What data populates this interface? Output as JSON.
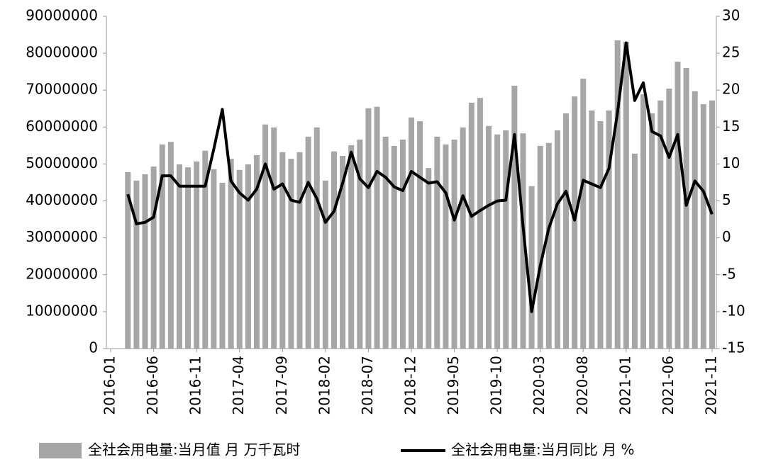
{
  "chart_data": {
    "type": "bar-line",
    "categories": [
      "2016-01",
      null,
      null,
      null,
      null,
      "2016-06",
      null,
      null,
      null,
      null,
      "2016-11",
      null,
      null,
      null,
      null,
      "2017-04",
      null,
      null,
      null,
      null,
      "2017-09",
      null,
      null,
      null,
      null,
      "2018-02",
      null,
      null,
      null,
      null,
      "2018-07",
      null,
      null,
      null,
      null,
      "2018-12",
      null,
      null,
      null,
      null,
      "2019-05",
      null,
      null,
      null,
      null,
      "2019-10",
      null,
      null,
      null,
      null,
      "2020-03",
      null,
      null,
      null,
      null,
      "2020-08",
      null,
      null,
      null,
      null,
      "2021-01",
      null,
      null,
      null,
      null,
      "2021-06",
      null,
      null,
      null,
      null,
      "2021-11"
    ],
    "series": [
      {
        "name": "全社会用电量:当月值 月 万千瓦时",
        "type": "bar",
        "color": "#a6a6a6",
        "values": [
          null,
          null,
          47800000,
          45500000,
          47200000,
          49300000,
          55300000,
          56000000,
          49900000,
          49100000,
          50700000,
          53600000,
          48600000,
          44900000,
          51400000,
          48400000,
          49900000,
          52400000,
          60700000,
          59900000,
          53200000,
          51400000,
          53200000,
          57400000,
          59900000,
          45500000,
          53400000,
          52200000,
          55100000,
          56600000,
          65100000,
          65500000,
          57400000,
          54900000,
          56600000,
          62600000,
          61600000,
          48900000,
          57400000,
          55300000,
          56600000,
          59900000,
          66600000,
          67900000,
          60300000,
          58000000,
          59100000,
          71200000,
          58300000,
          44000000,
          54900000,
          55700000,
          59100000,
          63700000,
          68300000,
          73100000,
          64500000,
          61600000,
          64500000,
          83500000,
          83100000,
          52800000,
          68900000,
          63700000,
          67200000,
          70400000,
          77700000,
          76000000,
          69700000,
          66200000,
          67200000
        ]
      },
      {
        "name": "全社会用电量:当月同比 月 %",
        "type": "line",
        "axis": "y2",
        "color": "#000000",
        "values": [
          null,
          null,
          5.9,
          1.9,
          2.1,
          2.8,
          8.4,
          8.4,
          7.0,
          7.0,
          7.0,
          7.0,
          12.0,
          17.4,
          7.7,
          6.1,
          5.1,
          6.6,
          10.0,
          6.6,
          7.3,
          5.1,
          4.8,
          7.5,
          5.3,
          2.1,
          3.6,
          7.4,
          11.6,
          8.0,
          6.8,
          9.0,
          8.2,
          6.9,
          6.4,
          9.0,
          8.2,
          7.4,
          7.6,
          6.1,
          2.4,
          5.7,
          2.9,
          3.7,
          4.4,
          5.0,
          5.1,
          14.0,
          1.5,
          -10.0,
          -3.8,
          1.3,
          4.6,
          6.3,
          2.4,
          7.8,
          7.3,
          6.8,
          9.4,
          17.0,
          26.4,
          18.6,
          21.0,
          14.4,
          13.8,
          10.9,
          14.0,
          4.4,
          7.7,
          6.3,
          3.2
        ]
      }
    ],
    "ylim": [
      0,
      90000000
    ],
    "yticks": [
      0,
      10000000,
      20000000,
      30000000,
      40000000,
      50000000,
      60000000,
      70000000,
      80000000,
      90000000
    ],
    "y2lim": [
      -15,
      30
    ],
    "y2ticks": [
      -15,
      -10,
      -5,
      0,
      5,
      10,
      15,
      20,
      25,
      30
    ],
    "grid": false,
    "legend": "bottom"
  }
}
